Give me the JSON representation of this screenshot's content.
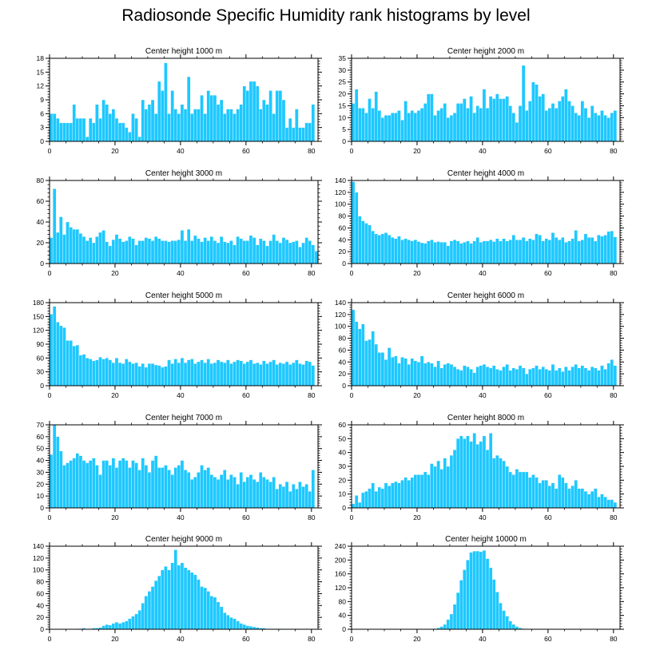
{
  "figure": {
    "title": "Radiosonde Specific Humidity rank histograms by level",
    "bar_color": "#1ec8ff",
    "bar_edge_color": "#ffffff"
  },
  "chart_data": [
    {
      "type": "bar",
      "title": "Center height 1000 m",
      "xlim": [
        0,
        82
      ],
      "ylim": [
        0,
        18
      ],
      "xticks": [
        0,
        20,
        40,
        60,
        80
      ],
      "yticks": [
        0,
        3,
        6,
        9,
        12,
        15,
        18
      ],
      "values": [
        6,
        6,
        5,
        4,
        4,
        4,
        4,
        8,
        5,
        5,
        5,
        1,
        5,
        4,
        8,
        5,
        9,
        8,
        6,
        7,
        5,
        4,
        4,
        3,
        2,
        6,
        5,
        1,
        9,
        7,
        8,
        9,
        6,
        13,
        11,
        17,
        6,
        11,
        7,
        6,
        8,
        7,
        14,
        6,
        7,
        7,
        10,
        6,
        11,
        10,
        10,
        8,
        9,
        6,
        7,
        7,
        6,
        7,
        8,
        12,
        11,
        13,
        13,
        12,
        7,
        9,
        8,
        11,
        6,
        11,
        11,
        9,
        3,
        5,
        3,
        7,
        3,
        3,
        4,
        4,
        8
      ]
    },
    {
      "type": "bar",
      "title": "Center height 2000 m",
      "xlim": [
        0,
        82
      ],
      "ylim": [
        0,
        35
      ],
      "xticks": [
        0,
        20,
        40,
        60,
        80
      ],
      "yticks": [
        0,
        5,
        10,
        15,
        20,
        25,
        30,
        35
      ],
      "values": [
        16,
        22,
        14,
        14,
        12,
        18,
        14,
        21,
        13,
        10,
        11,
        11,
        12,
        12,
        13,
        9,
        17,
        12,
        13,
        12,
        13,
        14,
        16,
        20,
        20,
        11,
        13,
        14,
        16,
        10,
        11,
        12,
        16,
        16,
        18,
        14,
        19,
        12,
        15,
        14,
        22,
        14,
        19,
        18,
        20,
        18,
        18,
        19,
        15,
        12,
        8,
        15,
        32,
        13,
        17,
        25,
        24,
        19,
        20,
        13,
        14,
        16,
        14,
        17,
        19,
        22,
        17,
        15,
        12,
        11,
        17,
        14,
        10,
        15,
        12,
        11,
        13,
        11,
        10,
        12,
        13
      ]
    },
    {
      "type": "bar",
      "title": "Center height 3000 m",
      "xlim": [
        0,
        82
      ],
      "ylim": [
        0,
        80
      ],
      "xticks": [
        0,
        20,
        40,
        60,
        80
      ],
      "yticks": [
        0,
        20,
        40,
        60,
        80
      ],
      "values": [
        25,
        72,
        30,
        45,
        28,
        40,
        35,
        33,
        33,
        29,
        26,
        22,
        25,
        20,
        26,
        30,
        32,
        21,
        17,
        23,
        28,
        24,
        21,
        22,
        26,
        24,
        18,
        22,
        22,
        25,
        24,
        22,
        26,
        24,
        22,
        22,
        21,
        22,
        22,
        23,
        32,
        22,
        33,
        22,
        27,
        24,
        21,
        25,
        22,
        26,
        22,
        20,
        26,
        21,
        20,
        22,
        18,
        26,
        24,
        22,
        22,
        27,
        25,
        18,
        24,
        22,
        17,
        22,
        28,
        22,
        20,
        25,
        23,
        20,
        21,
        22,
        16,
        20,
        25,
        22,
        18,
        12
      ]
    },
    {
      "type": "bar",
      "title": "Center height 4000 m",
      "xlim": [
        0,
        82
      ],
      "ylim": [
        0,
        140
      ],
      "xticks": [
        0,
        20,
        40,
        60,
        80
      ],
      "yticks": [
        0,
        20,
        40,
        60,
        80,
        100,
        120,
        140
      ],
      "values": [
        138,
        120,
        80,
        72,
        68,
        65,
        55,
        50,
        48,
        50,
        52,
        48,
        44,
        42,
        46,
        40,
        42,
        40,
        38,
        40,
        37,
        35,
        34,
        38,
        40,
        36,
        37,
        36,
        36,
        30,
        38,
        40,
        38,
        34,
        36,
        38,
        34,
        38,
        44,
        36,
        38,
        38,
        40,
        37,
        42,
        38,
        42,
        38,
        40,
        48,
        40,
        40,
        44,
        38,
        42,
        40,
        50,
        48,
        38,
        42,
        40,
        52,
        44,
        40,
        44,
        36,
        38,
        42,
        56,
        38,
        40,
        50,
        44,
        44,
        38,
        48,
        46,
        48,
        54,
        55,
        45
      ]
    },
    {
      "type": "bar",
      "title": "Center height 5000 m",
      "xlim": [
        0,
        82
      ],
      "ylim": [
        0,
        180
      ],
      "xticks": [
        0,
        20,
        40,
        60,
        80
      ],
      "yticks": [
        0,
        30,
        60,
        90,
        120,
        150,
        180
      ],
      "values": [
        155,
        172,
        138,
        130,
        126,
        98,
        98,
        86,
        88,
        66,
        68,
        60,
        58,
        54,
        56,
        62,
        58,
        60,
        56,
        50,
        60,
        50,
        48,
        58,
        52,
        48,
        50,
        42,
        48,
        40,
        48,
        48,
        45,
        44,
        40,
        42,
        56,
        48,
        58,
        50,
        60,
        50,
        56,
        58,
        48,
        52,
        56,
        50,
        58,
        48,
        50,
        56,
        52,
        50,
        56,
        48,
        52,
        56,
        54,
        48,
        52,
        56,
        48,
        50,
        46,
        54,
        48,
        52,
        56,
        46,
        50,
        48,
        52,
        46,
        50,
        56,
        48,
        46,
        54,
        52,
        44
      ]
    },
    {
      "type": "bar",
      "title": "Center height 6000 m",
      "xlim": [
        0,
        82
      ],
      "ylim": [
        0,
        140
      ],
      "xticks": [
        0,
        20,
        40,
        60,
        80
      ],
      "yticks": [
        0,
        20,
        40,
        60,
        80,
        100,
        120,
        140
      ],
      "values": [
        128,
        108,
        96,
        104,
        76,
        78,
        92,
        70,
        56,
        56,
        44,
        64,
        48,
        50,
        38,
        48,
        46,
        36,
        46,
        42,
        40,
        50,
        38,
        40,
        38,
        32,
        42,
        30,
        36,
        38,
        36,
        32,
        28,
        26,
        34,
        32,
        28,
        22,
        32,
        34,
        36,
        32,
        30,
        34,
        28,
        26,
        32,
        36,
        26,
        30,
        28,
        34,
        30,
        20,
        28,
        30,
        34,
        28,
        32,
        28,
        26,
        36,
        26,
        30,
        24,
        32,
        26,
        32,
        36,
        30,
        34,
        30,
        26,
        32,
        30,
        26,
        34,
        28,
        38,
        44,
        34
      ]
    },
    {
      "type": "bar",
      "title": "Center height 7000 m",
      "xlim": [
        0,
        82
      ],
      "ylim": [
        0,
        70
      ],
      "xticks": [
        0,
        20,
        40,
        60,
        80
      ],
      "yticks": [
        0,
        10,
        20,
        30,
        40,
        50,
        60,
        70
      ],
      "values": [
        45,
        70,
        60,
        48,
        36,
        38,
        40,
        42,
        46,
        44,
        40,
        38,
        40,
        42,
        36,
        28,
        40,
        40,
        36,
        42,
        34,
        40,
        42,
        40,
        34,
        40,
        38,
        32,
        42,
        36,
        30,
        40,
        44,
        34,
        34,
        36,
        32,
        28,
        34,
        36,
        40,
        32,
        30,
        24,
        26,
        30,
        36,
        32,
        34,
        28,
        26,
        24,
        28,
        32,
        24,
        28,
        26,
        20,
        30,
        22,
        26,
        28,
        24,
        22,
        30,
        26,
        24,
        22,
        26,
        16,
        20,
        18,
        22,
        14,
        20,
        16,
        22,
        18,
        20,
        14,
        32
      ]
    },
    {
      "type": "bar",
      "title": "Center height 8000 m",
      "xlim": [
        0,
        82
      ],
      "ylim": [
        0,
        60
      ],
      "xticks": [
        0,
        20,
        40,
        60,
        80
      ],
      "yticks": [
        0,
        10,
        20,
        30,
        40,
        50,
        60
      ],
      "values": [
        3,
        9,
        4,
        11,
        12,
        14,
        18,
        12,
        15,
        14,
        18,
        16,
        18,
        19,
        18,
        20,
        22,
        20,
        22,
        24,
        24,
        24,
        26,
        24,
        32,
        30,
        34,
        28,
        36,
        30,
        38,
        42,
        50,
        52,
        50,
        52,
        48,
        54,
        46,
        48,
        52,
        42,
        54,
        36,
        38,
        36,
        34,
        30,
        26,
        24,
        28,
        26,
        26,
        26,
        22,
        24,
        22,
        18,
        20,
        20,
        16,
        18,
        14,
        24,
        22,
        18,
        14,
        16,
        20,
        14,
        14,
        12,
        10,
        12,
        14,
        8,
        10,
        8,
        6,
        6,
        4
      ]
    },
    {
      "type": "bar",
      "title": "Center height 9000 m",
      "xlim": [
        0,
        82
      ],
      "ylim": [
        0,
        140
      ],
      "xticks": [
        0,
        20,
        40,
        60,
        80
      ],
      "yticks": [
        0,
        20,
        40,
        60,
        80,
        100,
        120,
        140
      ],
      "values": [
        0,
        0,
        0,
        0,
        0,
        0,
        0,
        0,
        1,
        1,
        2,
        1,
        1,
        2,
        2,
        3,
        6,
        8,
        7,
        10,
        12,
        10,
        12,
        14,
        18,
        22,
        26,
        32,
        44,
        56,
        64,
        72,
        82,
        90,
        100,
        106,
        100,
        112,
        134,
        108,
        112,
        104,
        100,
        96,
        92,
        84,
        72,
        70,
        64,
        56,
        54,
        46,
        38,
        28,
        24,
        20,
        18,
        14,
        10,
        8,
        6,
        5,
        4,
        3,
        2,
        2,
        1,
        1,
        1,
        1,
        1,
        0,
        0,
        0,
        0,
        1,
        0,
        0,
        1,
        0,
        0
      ]
    },
    {
      "type": "bar",
      "title": "Center height 10000 m",
      "xlim": [
        0,
        82
      ],
      "ylim": [
        0,
        240
      ],
      "xticks": [
        0,
        20,
        40,
        60,
        80
      ],
      "yticks": [
        0,
        40,
        80,
        120,
        160,
        200,
        240
      ],
      "values": [
        0,
        0,
        0,
        0,
        0,
        0,
        0,
        0,
        0,
        0,
        0,
        0,
        0,
        0,
        0,
        0,
        0,
        0,
        0,
        0,
        0,
        0,
        0,
        0,
        1,
        2,
        4,
        8,
        14,
        28,
        44,
        72,
        106,
        142,
        172,
        200,
        222,
        226,
        226,
        224,
        228,
        204,
        178,
        144,
        108,
        76,
        54,
        38,
        24,
        14,
        8,
        4,
        2,
        1,
        1,
        0,
        0,
        0,
        0,
        0,
        0,
        0,
        0,
        0,
        0,
        0,
        0,
        0,
        0,
        0,
        0,
        0,
        0,
        0,
        0,
        0,
        0,
        0,
        0,
        0,
        0
      ]
    }
  ]
}
